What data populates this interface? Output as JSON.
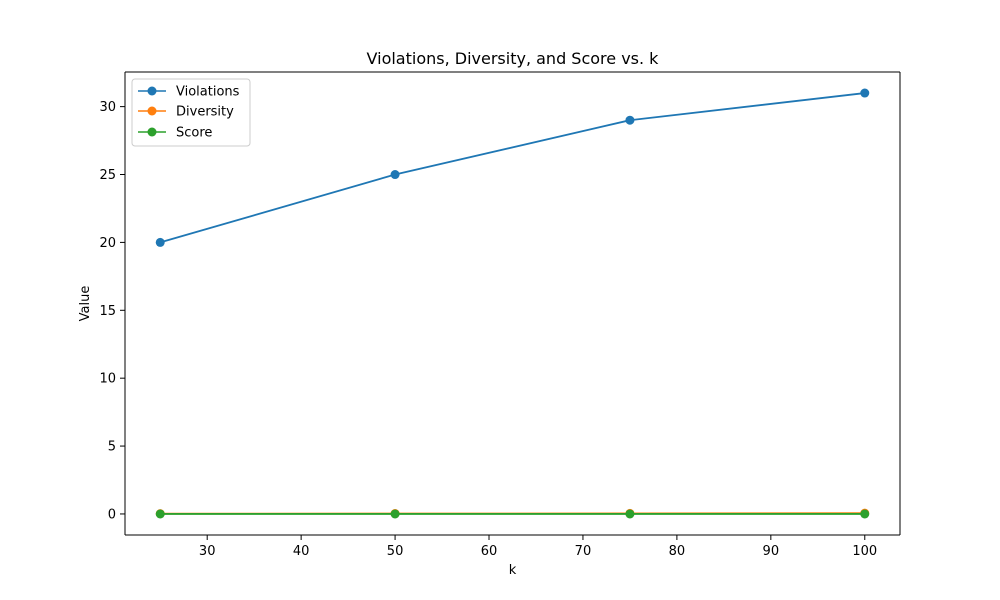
{
  "chart_data": {
    "type": "line",
    "title": "Violations, Diversity, and Score vs. k",
    "xlabel": "k",
    "ylabel": "Value",
    "x": [
      25,
      50,
      75,
      100
    ],
    "xlim": [
      21.25,
      103.75
    ],
    "ylim": [
      -1.55,
      32.55
    ],
    "xticks": [
      30,
      40,
      50,
      60,
      70,
      80,
      90,
      100
    ],
    "yticks": [
      0,
      5,
      10,
      15,
      20,
      25,
      30
    ],
    "grid": false,
    "legend_position": "top-left",
    "series": [
      {
        "name": "Violations",
        "color": "#1f77b4",
        "values": [
          20,
          25,
          29,
          31
        ]
      },
      {
        "name": "Diversity",
        "color": "#ff7f0e",
        "values": [
          0.02,
          0.03,
          0.04,
          0.06
        ]
      },
      {
        "name": "Score",
        "color": "#2ca02c",
        "values": [
          0.0,
          0.0,
          0.0,
          0.0
        ]
      }
    ]
  }
}
